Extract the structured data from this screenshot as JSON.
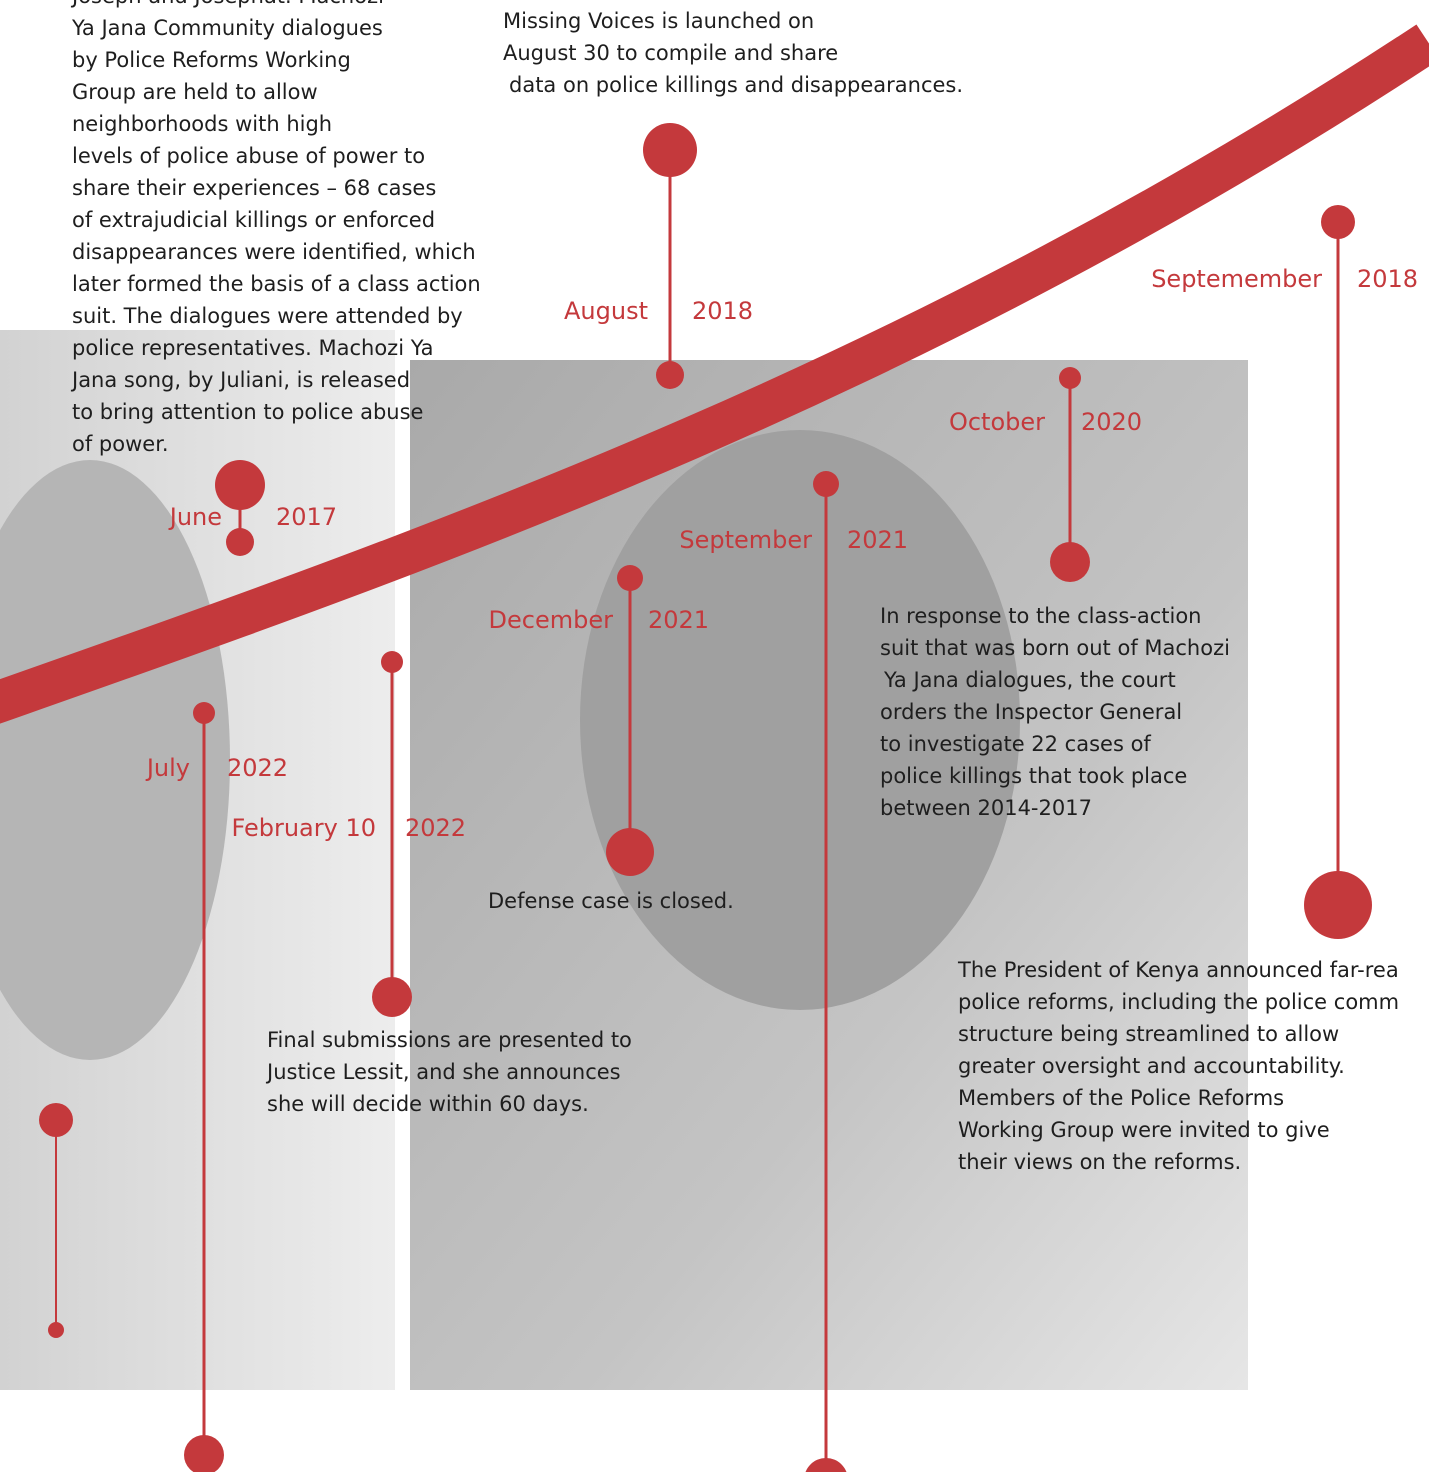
{
  "events": [
    {
      "month": "June",
      "year": "2017",
      "text": [
        "Joseph and Josephat. Machozi",
        "Ya Jana Community dialogues",
        "by Police Reforms Working",
        "Group are held to allow",
        "neighborhoods with high",
        "levels of police abuse of power to",
        "share their experiences – 68 cases",
        "of extrajudicial killings or enforced",
        "disappearances were identified, which",
        "later formed the basis of a class action",
        "suit. The dialogues were attended by",
        "police representatives. Machozi Ya",
        "Jana song, by Juliani, is released",
        "to bring attention to police abuse",
        "of power."
      ]
    },
    {
      "month": "August",
      "year": "2018",
      "text": [
        "Missing Voices is launched on",
        "August 30 to compile and share",
        "data on police killings and disappearances."
      ]
    },
    {
      "month": "Septemember",
      "year": "2018",
      "text": [
        "The President of Kenya announced far-rea",
        "police reforms, including the police comm",
        "structure being streamlined to allow",
        "greater oversight and accountability.",
        "Members of the Police Reforms",
        "Working Group were invited to give",
        "their views on the reforms."
      ]
    },
    {
      "month": "October",
      "year": "2020",
      "text": [
        "In response to the class-action",
        "suit that was born out of Machozi",
        "Ya Jana dialogues, the court",
        "orders the Inspector General",
        "to investigate 22 cases of",
        "police killings that took place",
        "between 2014-2017"
      ]
    },
    {
      "month": "September",
      "year": "2021",
      "text": []
    },
    {
      "month": "December",
      "year": "2021",
      "text": [
        "Defense case is closed."
      ]
    },
    {
      "month": "February 10",
      "year": "2022",
      "text": [
        "Final submissions are presented to",
        "Justice Lessit, and she announces",
        "she will decide within 60 days."
      ]
    },
    {
      "month": "July",
      "year": "2022",
      "text": []
    }
  ]
}
